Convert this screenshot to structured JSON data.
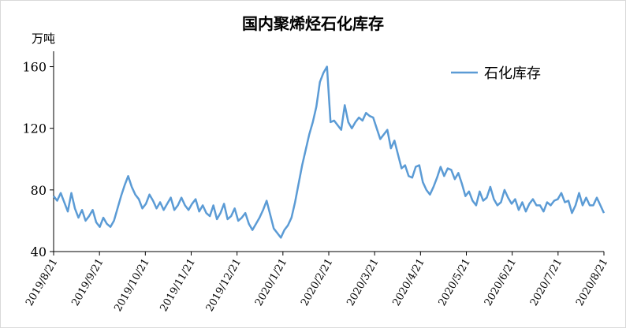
{
  "chart_data": {
    "type": "line",
    "title": "国内聚烯烃石化库存",
    "ylabel": "万吨",
    "ylim": [
      40,
      170
    ],
    "yticks": [
      40,
      80,
      120,
      160
    ],
    "x_tick_labels": [
      "2019/8/21",
      "2019/9/21",
      "2019/10/21",
      "2019/11/21",
      "2019/12/21",
      "2020/1/21",
      "2020/2/21",
      "2020/3/21",
      "2020/4/21",
      "2020/5/21",
      "2020/6/21",
      "2020/7/21",
      "2020/8/21"
    ],
    "legend_position": "top-right",
    "grid": false,
    "colors": {
      "series": "#5b9bd5",
      "axis": "#000000"
    },
    "series": [
      {
        "name": "石化库存",
        "y": [
          76,
          73,
          78,
          72,
          66,
          78,
          68,
          62,
          67,
          60,
          63,
          67,
          59,
          56,
          62,
          58,
          56,
          60,
          68,
          76,
          83,
          89,
          82,
          77,
          74,
          68,
          71,
          77,
          73,
          68,
          72,
          67,
          71,
          75,
          67,
          70,
          75,
          70,
          67,
          71,
          74,
          66,
          70,
          65,
          63,
          70,
          61,
          65,
          71,
          61,
          63,
          68,
          60,
          62,
          65,
          58,
          54,
          58,
          62,
          67,
          73,
          64,
          55,
          52,
          49,
          54,
          57,
          62,
          72,
          84,
          96,
          106,
          116,
          124,
          134,
          150,
          156,
          160,
          124,
          125,
          122,
          119,
          135,
          124,
          120,
          124,
          127,
          125,
          130,
          128,
          127,
          120,
          113,
          116,
          119,
          107,
          112,
          103,
          94,
          96,
          89,
          88,
          95,
          96,
          85,
          80,
          77,
          82,
          88,
          95,
          89,
          94,
          93,
          87,
          91,
          84,
          76,
          79,
          73,
          70,
          79,
          73,
          75,
          82,
          74,
          70,
          72,
          80,
          75,
          71,
          74,
          67,
          72,
          66,
          71,
          74,
          70,
          70,
          66,
          72,
          70,
          73,
          74,
          78,
          72,
          73,
          65,
          70,
          78,
          70,
          75,
          70,
          70,
          75,
          70,
          65
        ]
      }
    ]
  }
}
